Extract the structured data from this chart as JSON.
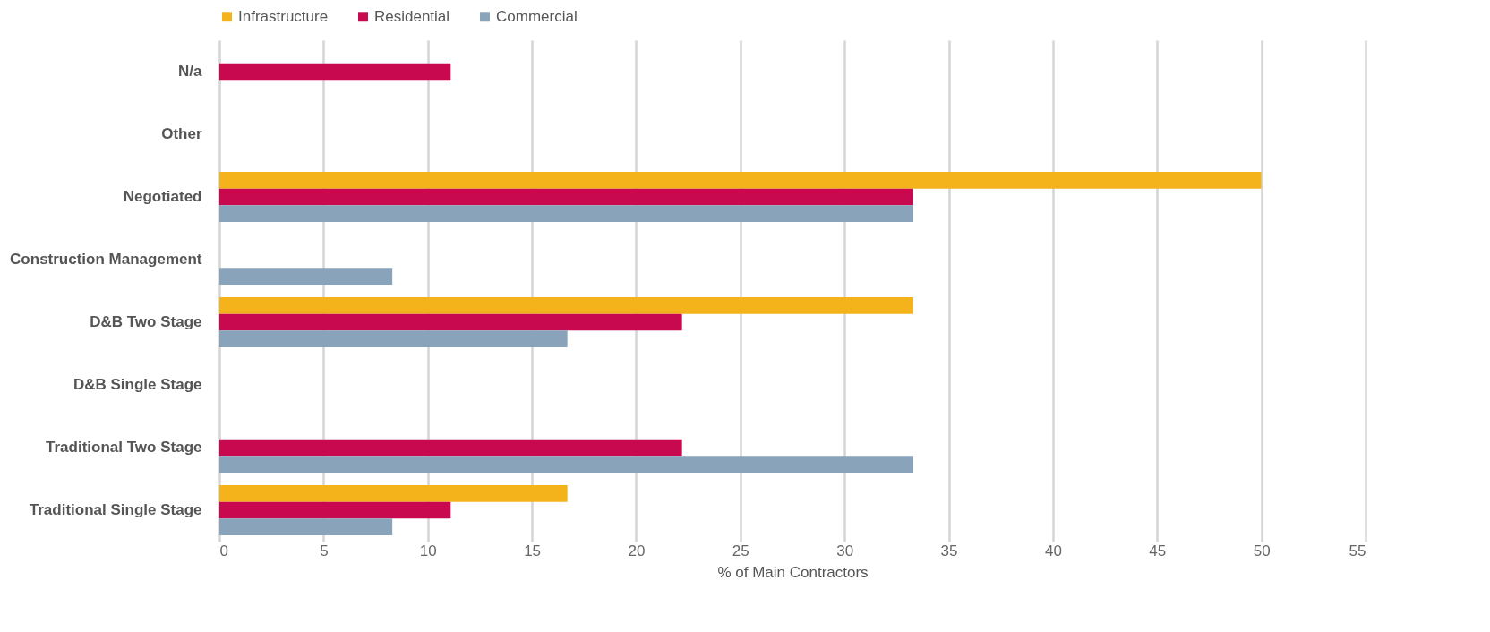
{
  "chart_data": {
    "type": "bar",
    "orientation": "horizontal",
    "xlabel": "% of Main Contractors",
    "categories": [
      "N/a",
      "Other",
      "Negotiated",
      "Construction Management",
      "D&B Two Stage",
      "D&B Single Stage",
      "Traditional Two Stage",
      "Traditional Single Stage"
    ],
    "series": [
      {
        "name": "Infrastructure",
        "color": "#f5b31b",
        "values": [
          0,
          0,
          50,
          0,
          33.3,
          0,
          0,
          16.7
        ]
      },
      {
        "name": "Residential",
        "color": "#c9094f",
        "values": [
          11.1,
          0,
          33.3,
          0,
          22.2,
          0,
          22.2,
          11.1
        ]
      },
      {
        "name": "Commercial",
        "color": "#89a3bb",
        "values": [
          0,
          0,
          33.3,
          8.3,
          16.7,
          0,
          33.3,
          8.3
        ]
      }
    ],
    "xlim": [
      0,
      55
    ],
    "xticks": [
      0,
      5,
      10,
      15,
      20,
      25,
      30,
      35,
      40,
      45,
      50,
      55
    ],
    "grid": "x",
    "legend": "top"
  }
}
